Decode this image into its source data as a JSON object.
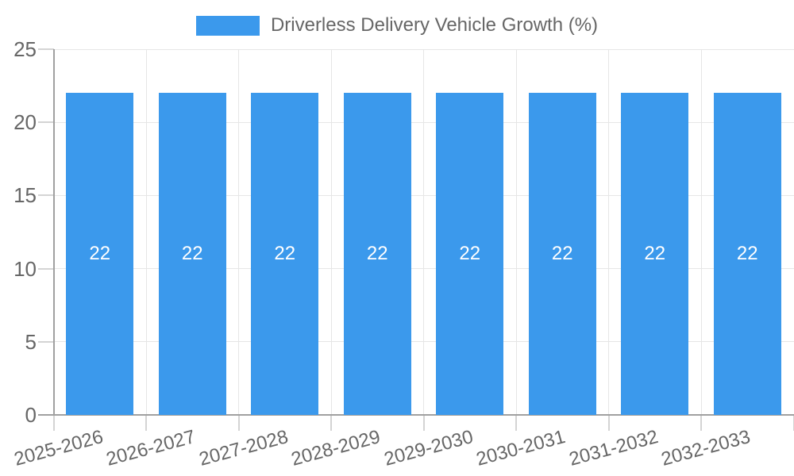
{
  "chart_data": {
    "type": "bar",
    "title": "Driverless Delivery Vehicle Growth (%)",
    "legend": {
      "label": "Driverless Delivery Vehicle Growth (%)",
      "position": "top"
    },
    "categories": [
      "2025-2026",
      "2026-2027",
      "2027-2028",
      "2028-2029",
      "2029-2030",
      "2030-2031",
      "2031-2032",
      "2032-2033"
    ],
    "series": [
      {
        "name": "Driverless Delivery Vehicle Growth (%)",
        "values": [
          22,
          22,
          22,
          22,
          22,
          22,
          22,
          22
        ]
      }
    ],
    "bar_value_labels": [
      "22",
      "22",
      "22",
      "22",
      "22",
      "22",
      "22",
      "22"
    ],
    "xlabel": "",
    "ylabel": "",
    "ylim": [
      0,
      25
    ],
    "yticks": [
      0,
      5,
      10,
      15,
      20,
      25
    ],
    "grid": true,
    "x_label_rotation_deg": -15,
    "colors": {
      "bar": "#3b99ec",
      "grid": "#e6e6e6",
      "tick": "#d4d4d4",
      "axis": "#a0a0a0",
      "text": "#666666",
      "bar_label": "#ffffff"
    }
  }
}
